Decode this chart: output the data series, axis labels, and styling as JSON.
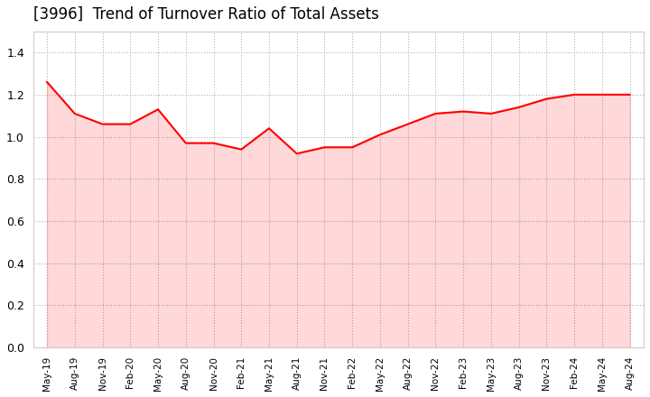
{
  "title": "[3996]  Trend of Turnover Ratio of Total Assets",
  "title_fontsize": 12,
  "line_color": "#FF0000",
  "line_width": 1.5,
  "background_color": "#FFFFFF",
  "grid_color": "#AAAAAA",
  "ylim": [
    0.0,
    1.5
  ],
  "yticks": [
    0.0,
    0.2,
    0.4,
    0.6,
    0.8,
    1.0,
    1.2,
    1.4
  ],
  "x_labels": [
    "May-19",
    "Aug-19",
    "Nov-19",
    "Feb-20",
    "May-20",
    "Aug-20",
    "Nov-20",
    "Feb-21",
    "May-21",
    "Aug-21",
    "Nov-21",
    "Feb-22",
    "May-22",
    "Aug-22",
    "Nov-22",
    "Feb-23",
    "May-23",
    "Aug-23",
    "Nov-23",
    "Feb-24",
    "May-24",
    "Aug-24"
  ],
  "y_values": [
    1.26,
    1.11,
    1.06,
    1.06,
    1.13,
    0.97,
    0.97,
    0.94,
    1.04,
    0.92,
    0.95,
    0.95,
    1.01,
    1.06,
    1.11,
    1.12,
    1.11,
    1.14,
    1.18,
    1.2,
    1.2,
    1.2
  ]
}
